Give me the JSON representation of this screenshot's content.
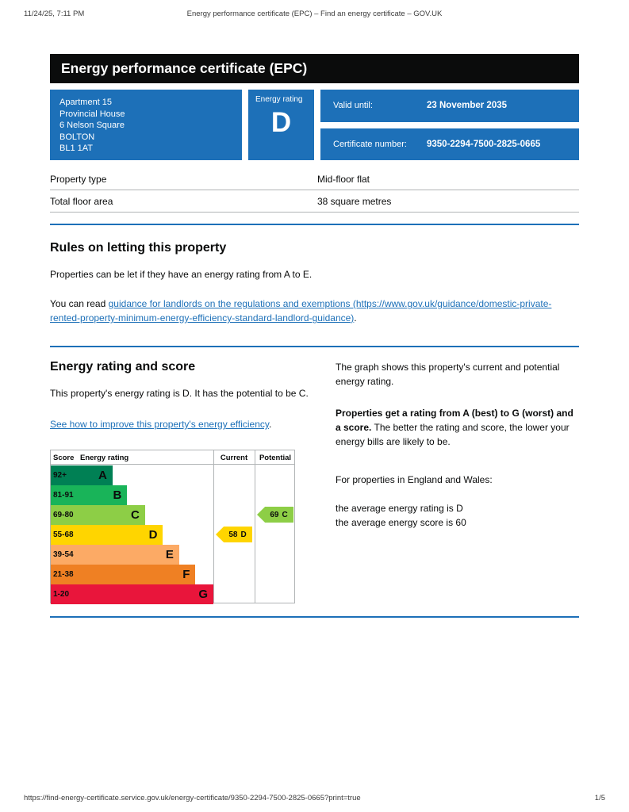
{
  "print_header": {
    "datetime": "11/24/25, 7:11 PM",
    "title": "Energy performance certificate (EPC) – Find an energy certificate – GOV.UK"
  },
  "banner": {
    "title": "Energy performance certificate (EPC)"
  },
  "summary": {
    "address_lines": [
      "Apartment 15",
      "Provincial House",
      "6 Nelson Square",
      "BOLTON",
      "BL1 1AT"
    ],
    "energy_rating_label": "Energy rating",
    "energy_rating": "D",
    "valid_until_label": "Valid until:",
    "valid_until": "23 November 2035",
    "certificate_number_label": "Certificate number:",
    "certificate_number": "9350-2294-7500-2825-0665"
  },
  "property_table": {
    "rows": [
      {
        "label": "Property type",
        "value": "Mid-floor flat"
      },
      {
        "label": "Total floor area",
        "value": "38 square metres"
      }
    ]
  },
  "rules_section": {
    "heading": "Rules on letting this property",
    "para1": "Properties can be let if they have an energy rating from A to E.",
    "para2_prefix": "You can read ",
    "para2_link": "guidance for landlords on the regulations and exemptions (https://www.gov.uk/guidance/domestic-private-rented-property-minimum-energy-efficiency-standard-landlord-guidance)",
    "para2_suffix": "."
  },
  "rating_section": {
    "heading": "Energy rating and score",
    "para1": "This property's energy rating is D. It has the potential to be C.",
    "improve_link": "See how to improve this property's energy efficiency",
    "improve_suffix": "."
  },
  "chart_data": {
    "type": "bar",
    "title": "Energy rating and score",
    "columns": {
      "score": "Score",
      "rating": "Energy rating",
      "current": "Current",
      "potential": "Potential"
    },
    "bands": [
      {
        "score_range": "92+",
        "letter": "A",
        "color": "#008054",
        "width_pct": 38
      },
      {
        "score_range": "81-91",
        "letter": "B",
        "color": "#19b459",
        "width_pct": 47
      },
      {
        "score_range": "69-80",
        "letter": "C",
        "color": "#8dce46",
        "width_pct": 58
      },
      {
        "score_range": "55-68",
        "letter": "D",
        "color": "#ffd500",
        "width_pct": 69
      },
      {
        "score_range": "39-54",
        "letter": "E",
        "color": "#fcaa65",
        "width_pct": 79
      },
      {
        "score_range": "21-38",
        "letter": "F",
        "color": "#ef8023",
        "width_pct": 89
      },
      {
        "score_range": "1-20",
        "letter": "G",
        "color": "#e9153b",
        "width_pct": 100
      }
    ],
    "current": {
      "score": 58,
      "rating": "D",
      "band_index": 3,
      "color": "#ffd500"
    },
    "potential": {
      "score": 69,
      "rating": "C",
      "band_index": 2,
      "color": "#8dce46"
    }
  },
  "right_column": {
    "para1": "The graph shows this property's current and potential energy rating.",
    "para2_bold": "Properties get a rating from A (best) to G (worst) and a score.",
    "para2_rest": " The better the rating and score, the lower your energy bills are likely to be.",
    "para3": "For properties in England and Wales:",
    "para4_line1": "the average energy rating is D",
    "para4_line2": "the average energy score is 60"
  },
  "print_footer": {
    "url": "https://find-energy-certificate.service.gov.uk/energy-certificate/9350-2294-7500-2825-0665?print=true",
    "page": "1/5"
  },
  "colors": {
    "brand_blue": "#1d70b8",
    "banner_black": "#0b0c0c"
  }
}
